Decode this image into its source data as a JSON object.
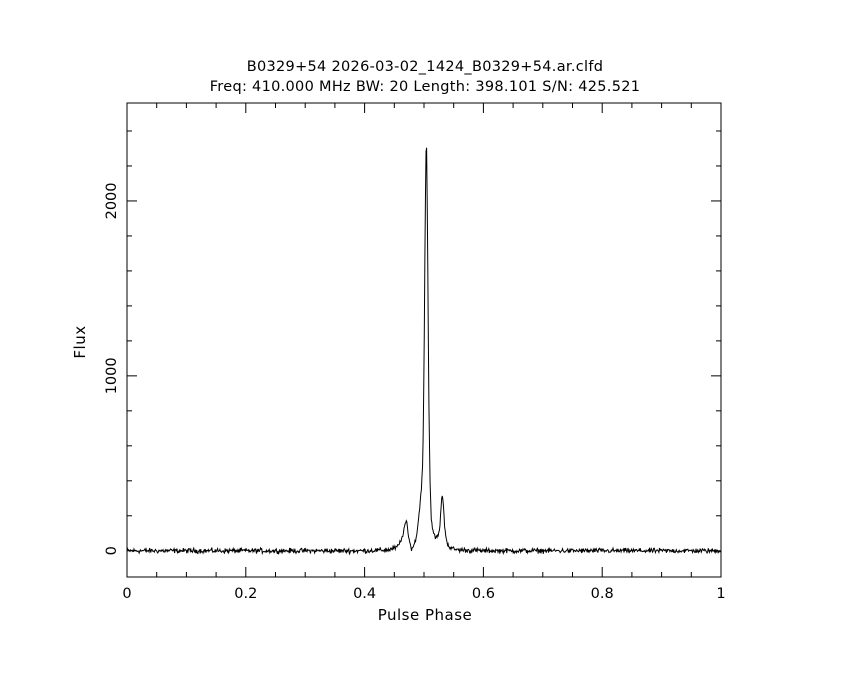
{
  "chart_data": {
    "type": "line",
    "title": "B0329+54 2026-03-02_1424_B0329+54.ar.clfd",
    "subtitle": "Freq: 410.000 MHz BW: 20 Length: 398.101 S/N: 425.521",
    "xlabel": "Pulse Phase",
    "ylabel": "Flux",
    "xlim": [
      0,
      1
    ],
    "ylim": [
      -150,
      2560
    ],
    "xticks": [
      0,
      0.2,
      0.4,
      0.6,
      0.8,
      1
    ],
    "xtick_labels": [
      "0",
      "0.2",
      "0.4",
      "0.6",
      "0.8",
      "1"
    ],
    "yticks": [
      0,
      1000,
      2000
    ],
    "ytick_labels": [
      "0",
      "1000",
      "2000"
    ],
    "grid": false,
    "legend": "none",
    "line_color": "#000000",
    "series": [
      {
        "x": [
          0,
          0.05,
          0.1,
          0.15,
          0.2,
          0.25,
          0.3,
          0.35,
          0.4,
          0.44,
          0.455,
          0.462,
          0.466,
          0.47,
          0.474,
          0.478,
          0.482,
          0.486,
          0.49,
          0.493,
          0.496,
          0.498,
          0.5,
          0.502,
          0.504,
          0.506,
          0.508,
          0.51,
          0.512,
          0.515,
          0.518,
          0.522,
          0.526,
          0.529,
          0.531,
          0.533,
          0.535,
          0.538,
          0.542,
          0.548,
          0.56,
          0.6,
          0.7,
          0.8,
          0.9,
          1.0
        ],
        "values": [
          0,
          0,
          0,
          0,
          0,
          0,
          0,
          0,
          0,
          5,
          20,
          60,
          120,
          175,
          80,
          15,
          25,
          60,
          150,
          260,
          380,
          500,
          1050,
          1900,
          2440,
          1800,
          900,
          420,
          200,
          110,
          80,
          75,
          110,
          260,
          330,
          250,
          120,
          60,
          25,
          10,
          5,
          0,
          0,
          0,
          0,
          0
        ]
      }
    ]
  }
}
